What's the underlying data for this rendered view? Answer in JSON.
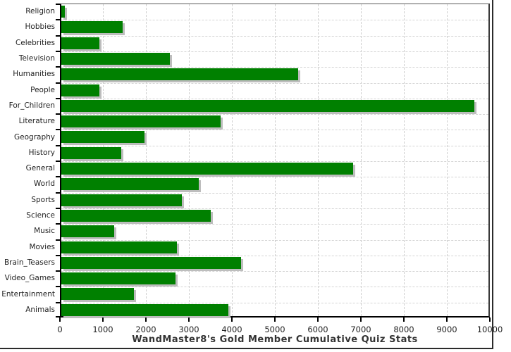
{
  "chart_data": {
    "type": "bar",
    "orientation": "horizontal",
    "title": "WandMaster8's Gold Member Cumulative Quiz Stats",
    "xlabel": "",
    "ylabel": "",
    "xlim": [
      0,
      10000
    ],
    "x_ticks": [
      0,
      1000,
      2000,
      3000,
      4000,
      5000,
      6000,
      7000,
      8000,
      9000,
      10000
    ],
    "grid": "dashed vertical gridlines at each 1000; dashed horizontal lines at category row boundaries",
    "legend": "none",
    "categories": [
      "Religion",
      "Hobbies",
      "Celebrities",
      "Television",
      "Humanities",
      "People",
      "For_Children",
      "Literature",
      "Geography",
      "History",
      "General",
      "World",
      "Sports",
      "Science",
      "Music",
      "Movies",
      "Brain_Teasers",
      "Video_Games",
      "Entertainment",
      "Animals"
    ],
    "values": [
      90,
      1420,
      880,
      2520,
      5510,
      890,
      9610,
      3700,
      1930,
      1390,
      6780,
      3200,
      2800,
      3470,
      1230,
      2690,
      4180,
      2650,
      1690,
      3880
    ]
  },
  "style": {
    "bar_color": "#008000",
    "bar_shadow_color": "#bdbdbd",
    "grid_color": "#cfcfcf",
    "axis_color": "#000000",
    "frame_color": "#2b2b2b",
    "text_color": "#222222",
    "title_color": "#333333",
    "background": "#ffffff"
  }
}
